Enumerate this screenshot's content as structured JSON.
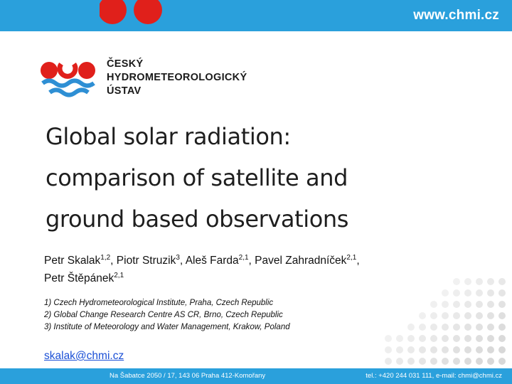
{
  "header": {
    "url": "www.chmi.cz"
  },
  "logo": {
    "line1": "ČESKÝ",
    "line2": "HYDROMETEOROLOGICKÝ",
    "line3": "ÚSTAV"
  },
  "title": {
    "line1": "Global solar radiation:",
    "line2": "comparison of satellite and",
    "line3": "ground based observations"
  },
  "authors": [
    {
      "name": "Petr Skalak",
      "aff": "1,2"
    },
    {
      "name": "Piotr Struzik",
      "aff": "3"
    },
    {
      "name": "Aleš Farda",
      "aff": "2,1"
    },
    {
      "name": "Pavel Zahradníček",
      "aff": "2,1"
    },
    {
      "name": "Petr Štěpánek",
      "aff": "2,1"
    }
  ],
  "affiliations": [
    "1) Czech Hydrometeorological Institute, Praha, Czech Republic",
    "2) Global Change Research Centre AS CR, Brno, Czech Republic",
    "3) Institute of Meteorology and Water Management, Krakow, Poland"
  ],
  "email": "skalak@chmi.cz",
  "footer": {
    "address": "Na Šabatce 2050 / 17, 143 06 Praha 412-Komořany",
    "contact": "tel.: +420 244 031 111, e-mail: chmi@chmi.cz"
  },
  "colors": {
    "banner": "#2aa0dc",
    "logo_red": "#e0201b",
    "logo_blue": "#2e8fd4",
    "link": "#1a4fd6"
  }
}
